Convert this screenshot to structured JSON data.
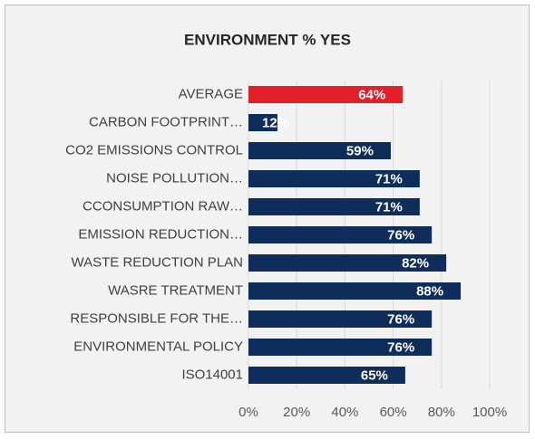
{
  "chart_data": {
    "type": "bar",
    "orientation": "horizontal",
    "title": "ENVIRONMENT % YES",
    "categories": [
      "AVERAGE",
      "CARBON FOOTPRINT…",
      "CO2 EMISSIONS CONTROL",
      "NOISE POLLUTION…",
      "CCONSUMPTION RAW…",
      "EMISSION REDUCTION…",
      "WASTE REDUCTION PLAN",
      "WASRE TREATMENT",
      "RESPONSIBLE FOR THE…",
      "ENVIRONMENTAL POLICY",
      "ISO14001"
    ],
    "values": [
      64,
      12,
      59,
      71,
      71,
      76,
      82,
      88,
      76,
      76,
      65
    ],
    "value_labels": [
      "64%",
      "12%",
      "59%",
      "71%",
      "71%",
      "76%",
      "82%",
      "88%",
      "76%",
      "76%",
      "65%"
    ],
    "colors": [
      "#e3202a",
      "#0f2d5a",
      "#0f2d5a",
      "#0f2d5a",
      "#0f2d5a",
      "#0f2d5a",
      "#0f2d5a",
      "#0f2d5a",
      "#0f2d5a",
      "#0f2d5a",
      "#0f2d5a"
    ],
    "xlim": [
      0,
      100
    ],
    "xticks": [
      {
        "value": 0,
        "label": "0%"
      },
      {
        "value": 20,
        "label": "20%"
      },
      {
        "value": 40,
        "label": "40%"
      },
      {
        "value": 60,
        "label": "60%"
      },
      {
        "value": 80,
        "label": "80%"
      },
      {
        "value": 100,
        "label": "100%"
      }
    ],
    "grid": true
  }
}
